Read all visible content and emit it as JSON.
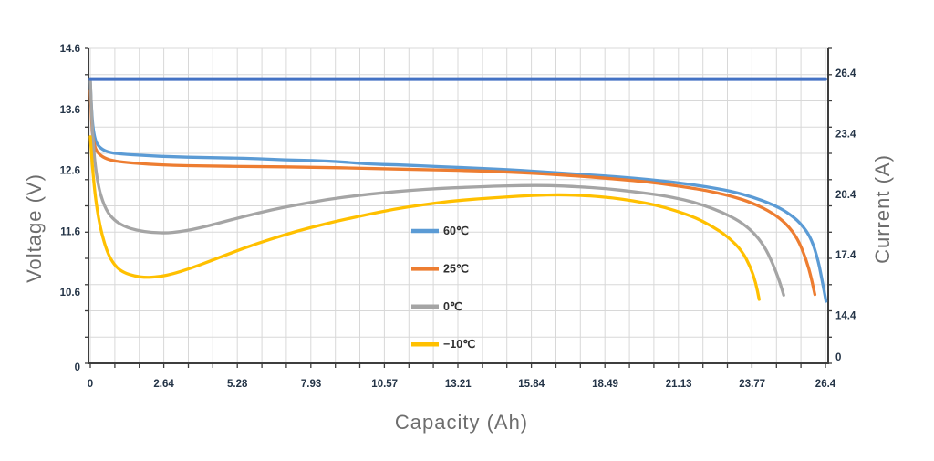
{
  "chart_data": {
    "type": "line",
    "title": "",
    "xlabel": "Capacity (Ah)",
    "ylabel_left": "Voltage (V)",
    "ylabel_right": "Current (A)",
    "grid": true,
    "legend_position": "center",
    "x_axis": {
      "min": 0,
      "max": 26.4,
      "ticks": [
        "0",
        "2.64",
        "5.28",
        "7.93",
        "10.57",
        "13.21",
        "15.84",
        "18.49",
        "21.13",
        "23.77",
        "26.4"
      ]
    },
    "y_axis_left": {
      "unit": "V",
      "broken_at_zero": true,
      "linear_min": 10.6,
      "linear_max": 14.6,
      "ticks": [
        "14.6",
        "13.6",
        "12.6",
        "11.6",
        "10.6",
        "0"
      ]
    },
    "y_axis_right": {
      "unit": "A",
      "broken_at_zero": true,
      "linear_min": 14.4,
      "linear_max": 26.4,
      "ticks": [
        "26.4",
        "23.4",
        "20.4",
        "17.4",
        "14.4",
        "0"
      ]
    },
    "colors": {
      "grid": "#d8d8d8",
      "axis": "#3d3d3d",
      "tick_label": "#243447",
      "axis_title": "#6d6d6d"
    },
    "series": [
      {
        "id": "60c",
        "label": "60℃",
        "color": "#5B9BD5",
        "axis": "left",
        "points": [
          [
            0,
            14.05
          ],
          [
            0.05,
            13.5
          ],
          [
            0.15,
            13.12
          ],
          [
            0.3,
            12.98
          ],
          [
            0.6,
            12.9
          ],
          [
            1,
            12.87
          ],
          [
            2,
            12.84
          ],
          [
            3,
            12.82
          ],
          [
            4,
            12.81
          ],
          [
            5,
            12.8
          ],
          [
            6,
            12.79
          ],
          [
            7,
            12.77
          ],
          [
            8,
            12.76
          ],
          [
            9,
            12.74
          ],
          [
            10,
            12.7
          ],
          [
            11,
            12.69
          ],
          [
            12,
            12.67
          ],
          [
            13,
            12.65
          ],
          [
            14,
            12.63
          ],
          [
            15,
            12.61
          ],
          [
            16,
            12.58
          ],
          [
            17,
            12.55
          ],
          [
            18,
            12.52
          ],
          [
            19,
            12.49
          ],
          [
            20,
            12.45
          ],
          [
            21,
            12.4
          ],
          [
            22,
            12.34
          ],
          [
            23,
            12.26
          ],
          [
            23.8,
            12.16
          ],
          [
            24.5,
            12.04
          ],
          [
            25,
            11.92
          ],
          [
            25.5,
            11.74
          ],
          [
            25.9,
            11.48
          ],
          [
            26.15,
            11.1
          ],
          [
            26.3,
            10.75
          ],
          [
            26.42,
            10.45
          ]
        ]
      },
      {
        "id": "25c",
        "label": "25℃",
        "color": "#ED7D31",
        "axis": "left",
        "points": [
          [
            0,
            13.9
          ],
          [
            0.05,
            13.3
          ],
          [
            0.15,
            12.98
          ],
          [
            0.3,
            12.86
          ],
          [
            0.6,
            12.78
          ],
          [
            1,
            12.74
          ],
          [
            2,
            12.7
          ],
          [
            3,
            12.68
          ],
          [
            4,
            12.67
          ],
          [
            6,
            12.66
          ],
          [
            8,
            12.65
          ],
          [
            10,
            12.63
          ],
          [
            12,
            12.61
          ],
          [
            14,
            12.59
          ],
          [
            15,
            12.57
          ],
          [
            16,
            12.55
          ],
          [
            17,
            12.52
          ],
          [
            18,
            12.49
          ],
          [
            19,
            12.45
          ],
          [
            20,
            12.41
          ],
          [
            21,
            12.35
          ],
          [
            22,
            12.28
          ],
          [
            23,
            12.18
          ],
          [
            23.8,
            12.06
          ],
          [
            24.5,
            11.9
          ],
          [
            25,
            11.72
          ],
          [
            25.4,
            11.48
          ],
          [
            25.7,
            11.15
          ],
          [
            25.9,
            10.82
          ],
          [
            26.02,
            10.56
          ]
        ]
      },
      {
        "id": "0c",
        "label": "0℃",
        "color": "#A5A5A5",
        "axis": "left",
        "points": [
          [
            0,
            14.1
          ],
          [
            0.08,
            13.1
          ],
          [
            0.25,
            12.4
          ],
          [
            0.5,
            12.0
          ],
          [
            0.8,
            11.8
          ],
          [
            1.2,
            11.68
          ],
          [
            1.7,
            11.61
          ],
          [
            2.2,
            11.58
          ],
          [
            2.7,
            11.57
          ],
          [
            3.2,
            11.59
          ],
          [
            3.8,
            11.64
          ],
          [
            4.6,
            11.73
          ],
          [
            5.5,
            11.84
          ],
          [
            6.5,
            11.95
          ],
          [
            7.5,
            12.04
          ],
          [
            8.5,
            12.12
          ],
          [
            9.5,
            12.18
          ],
          [
            10.5,
            12.23
          ],
          [
            11.5,
            12.27
          ],
          [
            12.5,
            12.3
          ],
          [
            13.5,
            12.32
          ],
          [
            14.5,
            12.34
          ],
          [
            15.5,
            12.35
          ],
          [
            16.5,
            12.35
          ],
          [
            17.5,
            12.33
          ],
          [
            18.5,
            12.3
          ],
          [
            19.5,
            12.25
          ],
          [
            20.5,
            12.19
          ],
          [
            21.3,
            12.12
          ],
          [
            22,
            12.03
          ],
          [
            22.7,
            11.91
          ],
          [
            23.3,
            11.77
          ],
          [
            23.8,
            11.59
          ],
          [
            24.2,
            11.36
          ],
          [
            24.5,
            11.08
          ],
          [
            24.75,
            10.78
          ],
          [
            24.9,
            10.55
          ]
        ]
      },
      {
        "id": "minus10c",
        "label": "−10℃",
        "color": "#FFC000",
        "axis": "left",
        "points": [
          [
            0,
            13.15
          ],
          [
            0.1,
            12.45
          ],
          [
            0.3,
            11.75
          ],
          [
            0.6,
            11.25
          ],
          [
            0.9,
            11.02
          ],
          [
            1.2,
            10.92
          ],
          [
            1.6,
            10.86
          ],
          [
            2,
            10.84
          ],
          [
            2.4,
            10.85
          ],
          [
            2.9,
            10.89
          ],
          [
            3.6,
            10.99
          ],
          [
            4.3,
            11.11
          ],
          [
            5.1,
            11.25
          ],
          [
            6,
            11.4
          ],
          [
            6.9,
            11.53
          ],
          [
            7.9,
            11.66
          ],
          [
            8.9,
            11.77
          ],
          [
            9.9,
            11.87
          ],
          [
            10.9,
            11.96
          ],
          [
            11.9,
            12.03
          ],
          [
            12.9,
            12.09
          ],
          [
            13.9,
            12.13
          ],
          [
            14.9,
            12.16
          ],
          [
            15.9,
            12.19
          ],
          [
            16.9,
            12.2
          ],
          [
            17.9,
            12.18
          ],
          [
            18.7,
            12.15
          ],
          [
            19.5,
            12.1
          ],
          [
            20.3,
            12.03
          ],
          [
            21,
            11.94
          ],
          [
            21.7,
            11.83
          ],
          [
            22.3,
            11.69
          ],
          [
            22.9,
            11.51
          ],
          [
            23.4,
            11.28
          ],
          [
            23.7,
            11.02
          ],
          [
            23.9,
            10.75
          ],
          [
            24.02,
            10.48
          ]
        ]
      },
      {
        "id": "current",
        "label": "",
        "color": "#4472C4",
        "axis": "right",
        "points": [
          [
            0,
            26.1
          ],
          [
            26.4,
            26.1
          ]
        ]
      }
    ]
  }
}
